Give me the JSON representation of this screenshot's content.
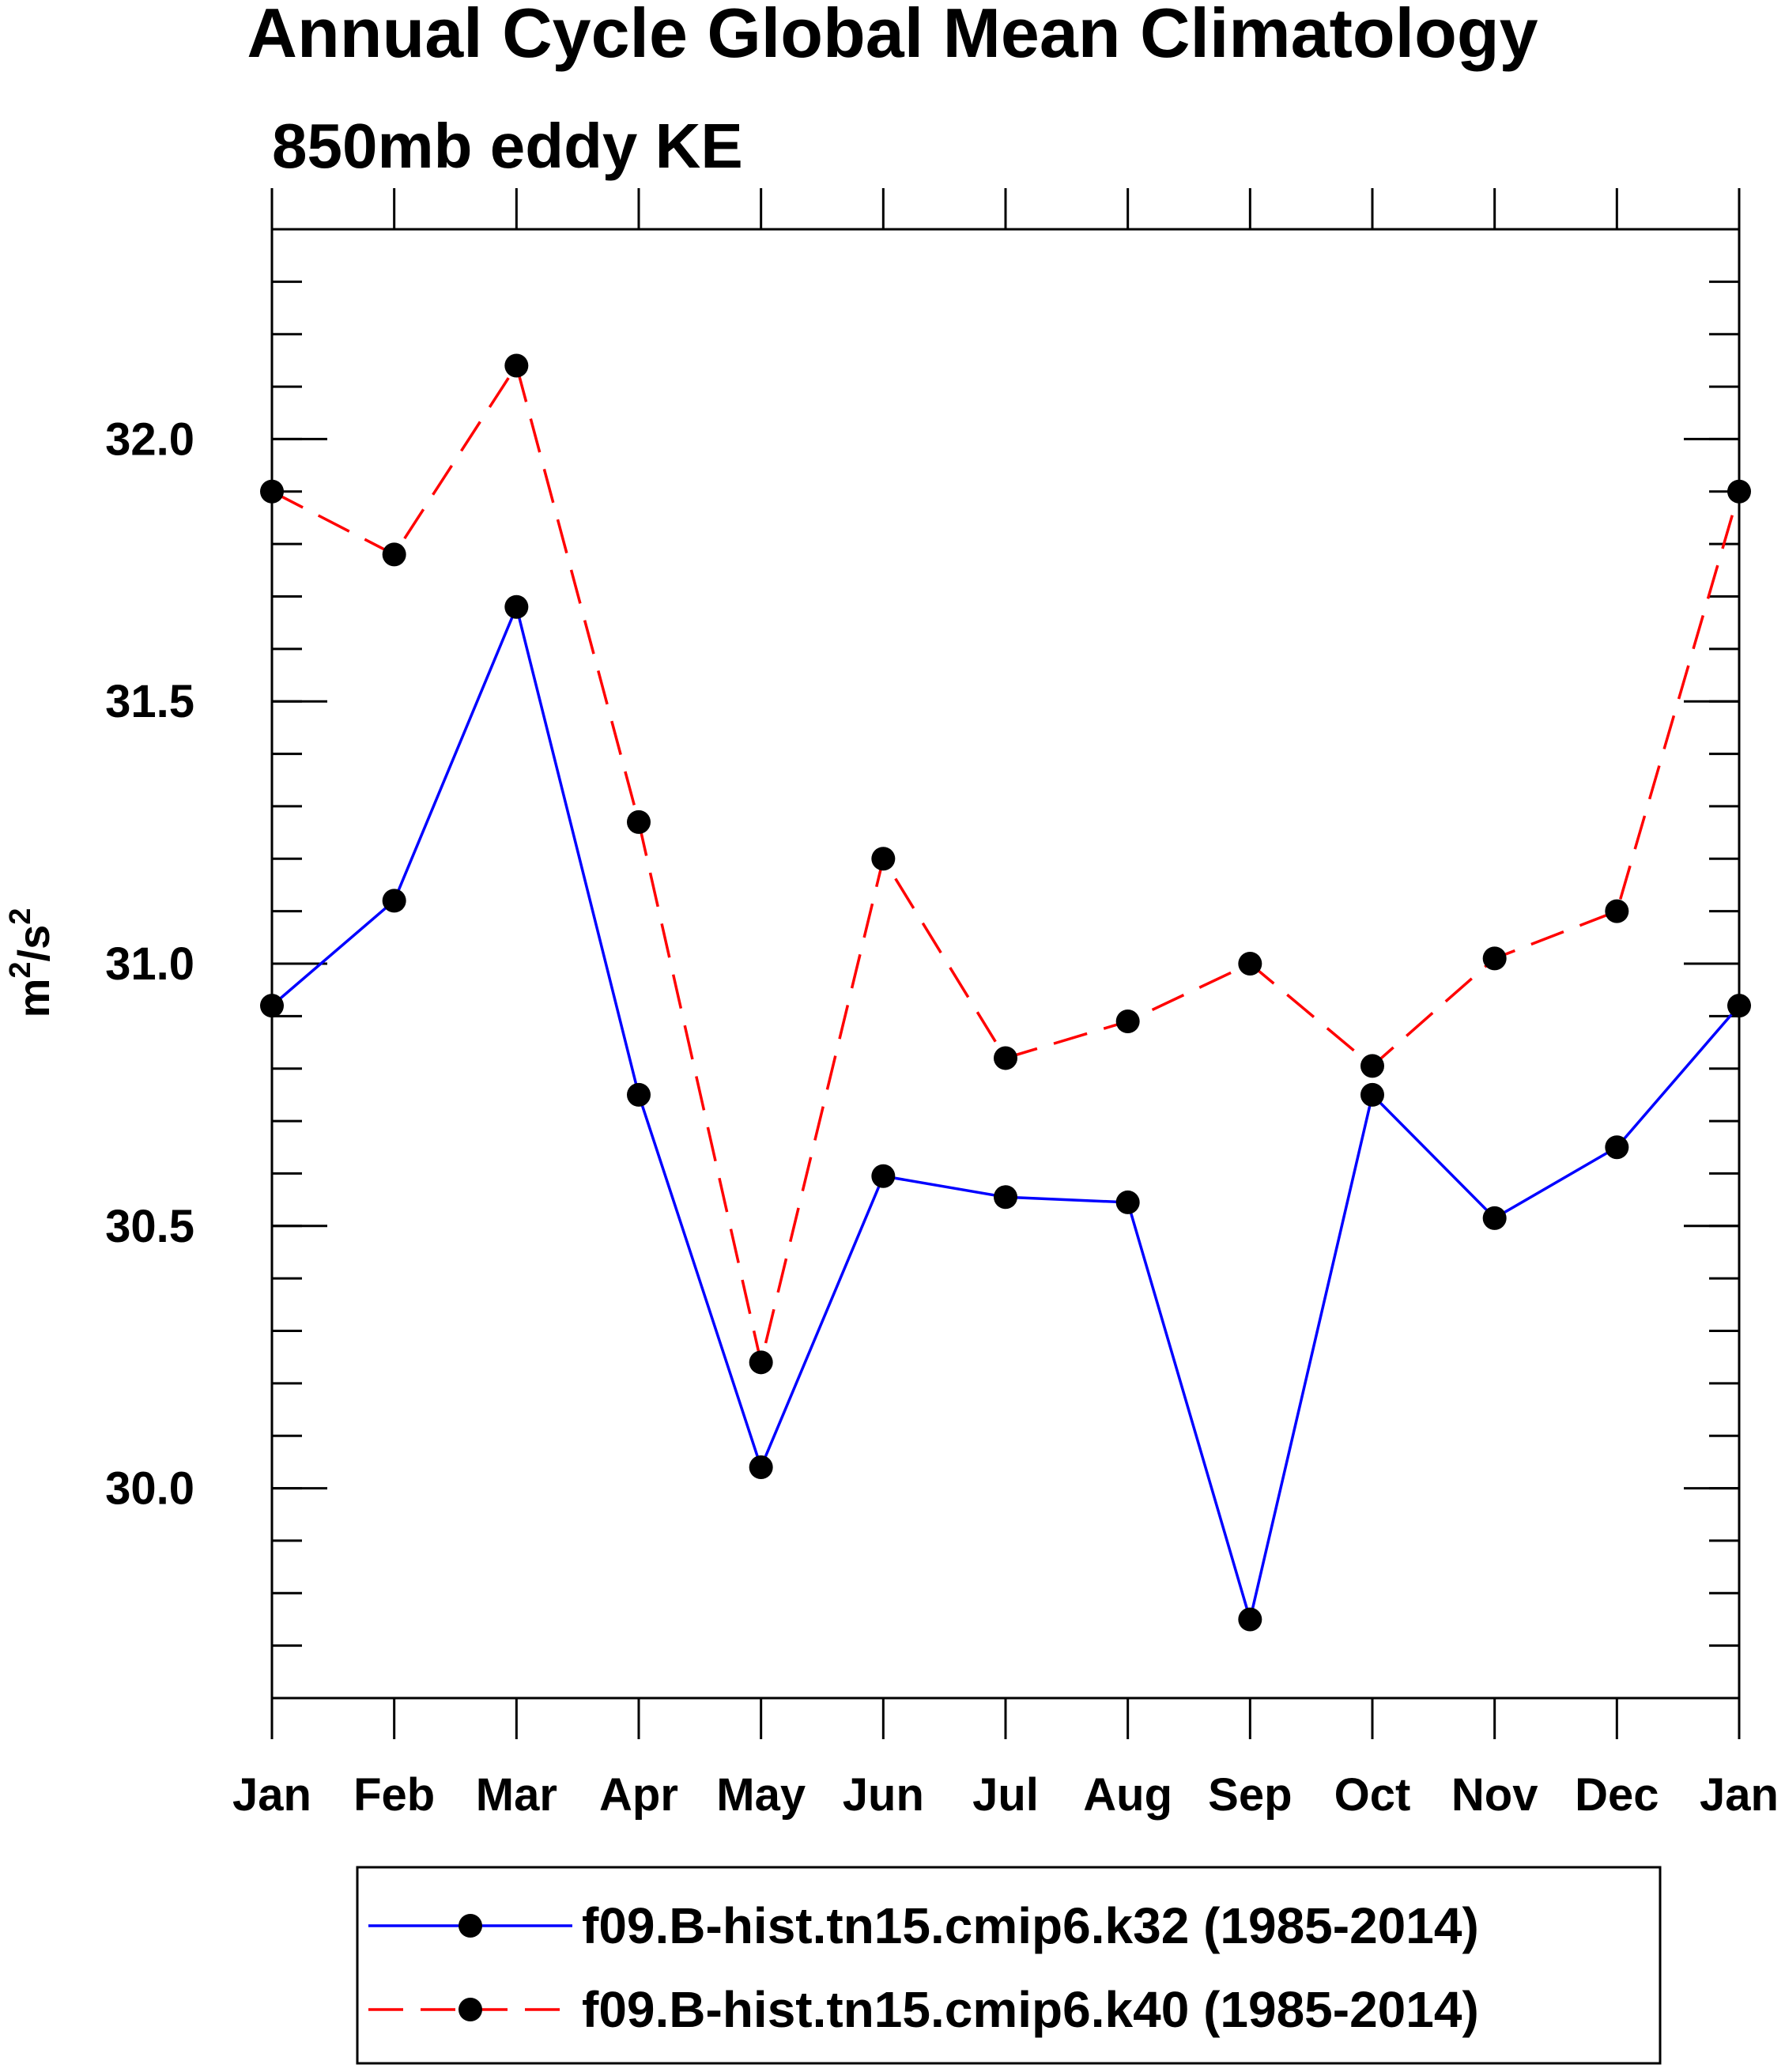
{
  "chart_data": {
    "type": "line",
    "title": "Annual Cycle Global Mean Climatology",
    "subtitle": "850mb eddy KE",
    "xlabel": "",
    "ylabel": "m2/s2",
    "ylabel_parts": {
      "base1": "m",
      "sup1": "2",
      "slash": "/",
      "base2": "s",
      "sup2": "2"
    },
    "categories": [
      "Jan",
      "Feb",
      "Mar",
      "Apr",
      "May",
      "Jun",
      "Jul",
      "Aug",
      "Sep",
      "Oct",
      "Nov",
      "Dec",
      "Jan"
    ],
    "ylim": [
      29.6,
      32.4
    ],
    "yticks": [
      30.0,
      30.5,
      31.0,
      31.5,
      32.0
    ],
    "ytick_labels": [
      "30.0",
      "30.5",
      "31.0",
      "31.5",
      "32.0"
    ],
    "yminor_step": 0.1,
    "grid": false,
    "legend_position": "bottom",
    "series": [
      {
        "name": "f09.B-hist.tn15.cmip6.k32 (1985-2014)",
        "color": "#0000ff",
        "dash": "solid",
        "values": [
          30.92,
          31.12,
          31.68,
          30.75,
          30.04,
          30.595,
          30.555,
          30.545,
          29.75,
          30.75,
          30.515,
          30.65,
          30.92
        ]
      },
      {
        "name": "f09.B-hist.tn15.cmip6.k40 (1985-2014)",
        "color": "#ff0000",
        "dash": "dashed",
        "values": [
          31.9,
          31.78,
          32.14,
          31.27,
          30.24,
          31.2,
          30.82,
          30.89,
          31.0,
          30.805,
          31.01,
          31.1,
          31.9
        ]
      }
    ]
  }
}
